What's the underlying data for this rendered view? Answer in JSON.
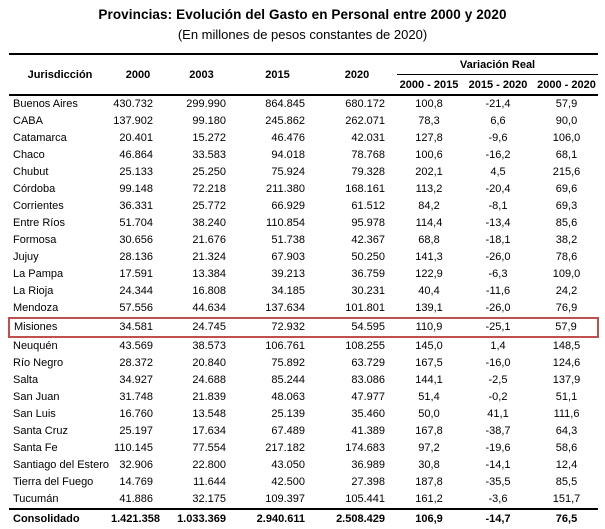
{
  "title": "Provincias: Evolución del Gasto en Personal entre 2000 y 2020",
  "subtitle": "(En millones de pesos constantes de 2020)",
  "highlight_color": "#c0504d",
  "chart_data": {
    "type": "table",
    "title": "Provincias: Evolución del Gasto en Personal entre 2000 y 2020",
    "subtitle": "(En millones de pesos constantes de 2020)",
    "columns": [
      "Jurisdicción",
      "2000",
      "2003",
      "2015",
      "2020"
    ],
    "variation_group_label": "Variación Real",
    "variation_columns": [
      "2000 - 2015",
      "2015 - 2020",
      "2000 - 2020"
    ],
    "rows": [
      {
        "name": "Buenos Aires",
        "values": [
          "430.732",
          "299.990",
          "864.845",
          "680.172",
          "100,8",
          "-21,4",
          "57,9"
        ],
        "highlighted": false
      },
      {
        "name": "CABA",
        "values": [
          "137.902",
          "99.180",
          "245.862",
          "262.071",
          "78,3",
          "6,6",
          "90,0"
        ],
        "highlighted": false
      },
      {
        "name": "Catamarca",
        "values": [
          "20.401",
          "15.272",
          "46.476",
          "42.031",
          "127,8",
          "-9,6",
          "106,0"
        ],
        "highlighted": false
      },
      {
        "name": "Chaco",
        "values": [
          "46.864",
          "33.583",
          "94.018",
          "78.768",
          "100,6",
          "-16,2",
          "68,1"
        ],
        "highlighted": false
      },
      {
        "name": "Chubut",
        "values": [
          "25.133",
          "25.250",
          "75.924",
          "79.328",
          "202,1",
          "4,5",
          "215,6"
        ],
        "highlighted": false
      },
      {
        "name": "Córdoba",
        "values": [
          "99.148",
          "72.218",
          "211.380",
          "168.161",
          "113,2",
          "-20,4",
          "69,6"
        ],
        "highlighted": false
      },
      {
        "name": "Corrientes",
        "values": [
          "36.331",
          "25.772",
          "66.929",
          "61.512",
          "84,2",
          "-8,1",
          "69,3"
        ],
        "highlighted": false
      },
      {
        "name": "Entre Ríos",
        "values": [
          "51.704",
          "38.240",
          "110.854",
          "95.978",
          "114,4",
          "-13,4",
          "85,6"
        ],
        "highlighted": false
      },
      {
        "name": "Formosa",
        "values": [
          "30.656",
          "21.676",
          "51.738",
          "42.367",
          "68,8",
          "-18,1",
          "38,2"
        ],
        "highlighted": false
      },
      {
        "name": "Jujuy",
        "values": [
          "28.136",
          "21.324",
          "67.903",
          "50.250",
          "141,3",
          "-26,0",
          "78,6"
        ],
        "highlighted": false
      },
      {
        "name": "La Pampa",
        "values": [
          "17.591",
          "13.384",
          "39.213",
          "36.759",
          "122,9",
          "-6,3",
          "109,0"
        ],
        "highlighted": false
      },
      {
        "name": "La Rioja",
        "values": [
          "24.344",
          "16.808",
          "34.185",
          "30.231",
          "40,4",
          "-11,6",
          "24,2"
        ],
        "highlighted": false
      },
      {
        "name": "Mendoza",
        "values": [
          "57.556",
          "44.634",
          "137.634",
          "101.801",
          "139,1",
          "-26,0",
          "76,9"
        ],
        "highlighted": false
      },
      {
        "name": "Misiones",
        "values": [
          "34.581",
          "24.745",
          "72.932",
          "54.595",
          "110,9",
          "-25,1",
          "57,9"
        ],
        "highlighted": true
      },
      {
        "name": "Neuquén",
        "values": [
          "43.569",
          "38.573",
          "106.761",
          "108.255",
          "145,0",
          "1,4",
          "148,5"
        ],
        "highlighted": false
      },
      {
        "name": "Río Negro",
        "values": [
          "28.372",
          "20.840",
          "75.892",
          "63.729",
          "167,5",
          "-16,0",
          "124,6"
        ],
        "highlighted": false
      },
      {
        "name": "Salta",
        "values": [
          "34.927",
          "24.688",
          "85.244",
          "83.086",
          "144,1",
          "-2,5",
          "137,9"
        ],
        "highlighted": false
      },
      {
        "name": "San Juan",
        "values": [
          "31.748",
          "21.839",
          "48.063",
          "47.977",
          "51,4",
          "-0,2",
          "51,1"
        ],
        "highlighted": false
      },
      {
        "name": "San Luis",
        "values": [
          "16.760",
          "13.548",
          "25.139",
          "35.460",
          "50,0",
          "41,1",
          "111,6"
        ],
        "highlighted": false
      },
      {
        "name": "Santa Cruz",
        "values": [
          "25.197",
          "17.634",
          "67.489",
          "41.389",
          "167,8",
          "-38,7",
          "64,3"
        ],
        "highlighted": false
      },
      {
        "name": "Santa Fe",
        "values": [
          "110.145",
          "77.554",
          "217.182",
          "174.683",
          "97,2",
          "-19,6",
          "58,6"
        ],
        "highlighted": false
      },
      {
        "name": "Santiago del Estero",
        "values": [
          "32.906",
          "22.800",
          "43.050",
          "36.989",
          "30,8",
          "-14,1",
          "12,4"
        ],
        "highlighted": false
      },
      {
        "name": "Tierra del Fuego",
        "values": [
          "14.769",
          "11.644",
          "42.500",
          "27.398",
          "187,8",
          "-35,5",
          "85,5"
        ],
        "highlighted": false
      },
      {
        "name": "Tucumán",
        "values": [
          "41.886",
          "32.175",
          "109.397",
          "105.441",
          "161,2",
          "-3,6",
          "151,7"
        ],
        "highlighted": false
      }
    ],
    "total_row": {
      "name": "Consolidado",
      "values": [
        "1.421.358",
        "1.033.369",
        "2.940.611",
        "2.508.429",
        "106,9",
        "-14,7",
        "76,5"
      ]
    }
  }
}
